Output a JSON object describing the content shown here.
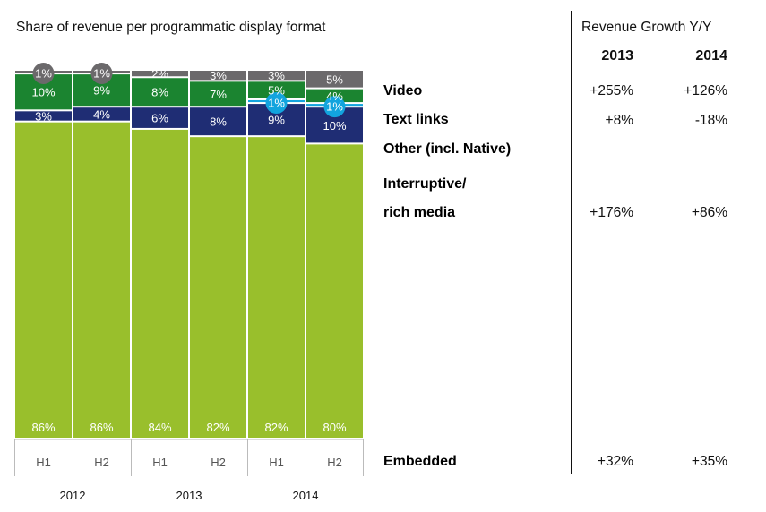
{
  "chart_data": {
    "type": "bar",
    "stacked": true,
    "title": "Share of revenue per programmatic display format",
    "xlabel": "",
    "ylabel": "",
    "ylim": [
      0,
      100
    ],
    "categories": [
      "H1",
      "H2",
      "H1",
      "H2",
      "H1",
      "H2"
    ],
    "groups": [
      {
        "label": "2012",
        "span": 2
      },
      {
        "label": "2013",
        "span": 2
      },
      {
        "label": "2014",
        "span": 2
      }
    ],
    "series": [
      {
        "name": "Embedded",
        "color": "#99bf2c",
        "values": [
          86,
          86,
          84,
          82,
          82,
          80
        ],
        "labels": [
          "86%",
          "86%",
          "84%",
          "82%",
          "82%",
          "80%"
        ]
      },
      {
        "name": "Interruptive/ rich media",
        "color": "#1f2d74",
        "values": [
          3,
          4,
          6,
          8,
          9,
          10
        ],
        "labels": [
          "3%",
          "4%",
          "6%",
          "8%",
          "9%",
          "10%"
        ]
      },
      {
        "name": "Other (incl. Native)",
        "color": "#12a4de",
        "values": [
          0,
          0,
          0,
          0,
          1,
          1
        ],
        "labels": [
          "",
          "",
          "",
          "",
          "1%",
          "1%"
        ]
      },
      {
        "name": "Text links",
        "color": "#1b8430",
        "values": [
          10,
          9,
          8,
          7,
          5,
          4
        ],
        "labels": [
          "10%",
          "9%",
          "8%",
          "7%",
          "5%",
          "4%"
        ]
      },
      {
        "name": "Video",
        "color": "#6b696b",
        "values": [
          1,
          1,
          2,
          3,
          3,
          5
        ],
        "labels": [
          "1%",
          "1%",
          "2%",
          "3%",
          "3%",
          "5%"
        ]
      }
    ],
    "small_value_bubbles": {
      "Video": [
        0,
        1
      ],
      "Other (incl. Native)": [
        4,
        5
      ]
    }
  },
  "legend": [
    {
      "key": "video",
      "label": "Video",
      "color": "#5e5e5e"
    },
    {
      "key": "text_links",
      "label": "Text links",
      "color": "#1b8430"
    },
    {
      "key": "other",
      "label": "Other (incl. Native)",
      "color": "#1aa0dc"
    },
    {
      "key": "interruptive_1",
      "label": "Interruptive/",
      "color": "#1f2d74"
    },
    {
      "key": "interruptive_2",
      "label": "rich media",
      "color": "#1f2d74"
    },
    {
      "key": "embedded",
      "label": "Embedded",
      "color": "#99bf2c"
    }
  ],
  "growth": {
    "title": "Revenue Growth Y/Y",
    "years": [
      "2013",
      "2014"
    ],
    "rows": [
      {
        "format": "Video",
        "values": [
          "+255%",
          "+126%"
        ]
      },
      {
        "format": "Text links",
        "values": [
          "+8%",
          "-18%"
        ]
      },
      {
        "format": "Interruptive/ rich media",
        "values": [
          "+176%",
          "+86%"
        ]
      },
      {
        "format": "Embedded",
        "values": [
          "+32%",
          "+35%"
        ]
      }
    ]
  }
}
